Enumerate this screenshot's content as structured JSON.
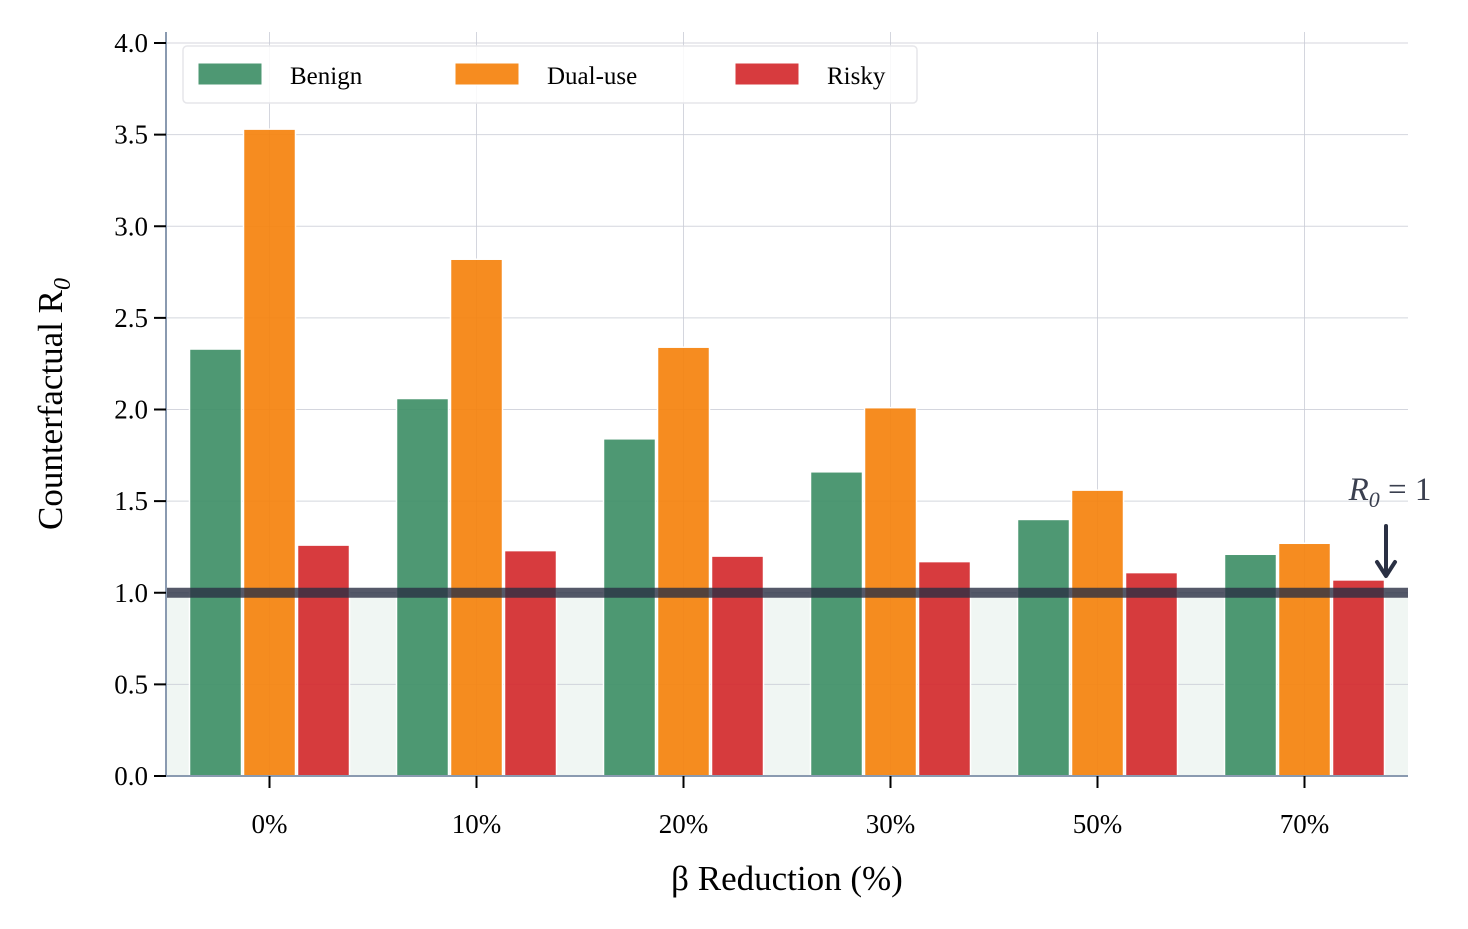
{
  "chart_data": {
    "type": "bar",
    "categories": [
      "0%",
      "10%",
      "20%",
      "30%",
      "50%",
      "70%"
    ],
    "series": [
      {
        "name": "Benign",
        "values": [
          2.33,
          2.06,
          1.84,
          1.66,
          1.4,
          1.21
        ],
        "color": "#3f8f67"
      },
      {
        "name": "Dual-use",
        "values": [
          3.53,
          2.82,
          2.34,
          2.01,
          1.56,
          1.27
        ],
        "color": "#f5820d"
      },
      {
        "name": "Risky",
        "values": [
          1.26,
          1.23,
          1.2,
          1.17,
          1.11,
          1.07
        ],
        "color": "#d42a2e"
      }
    ],
    "xlabel": "β Reduction (%)",
    "ylabel": "Counterfactual R",
    "ylabel_subscript": "0",
    "ylim": [
      0,
      4.0
    ],
    "yticks": [
      "0.0",
      "0.5",
      "1.0",
      "1.5",
      "2.0",
      "2.5",
      "3.0",
      "3.5",
      "4.0"
    ],
    "threshold": 1.0,
    "threshold_color": "#2a3043",
    "shaded_region_below_threshold": true,
    "annotation": {
      "text": "R",
      "subscript": "0",
      "rest": " = 1"
    },
    "grid": true,
    "legend_position": "top-left"
  }
}
